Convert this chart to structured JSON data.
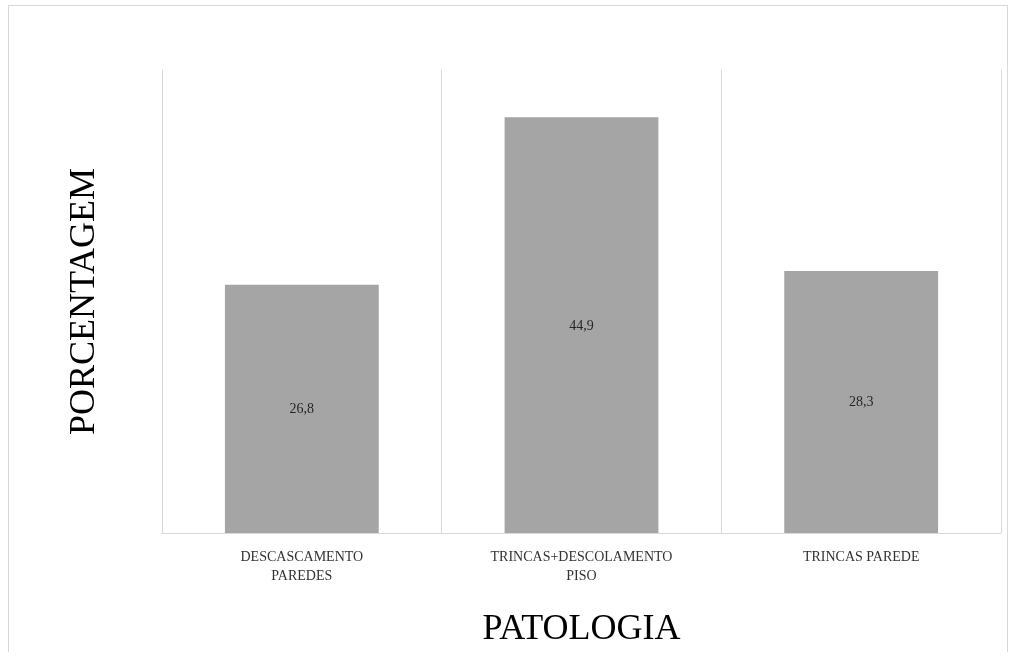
{
  "chart_data": {
    "type": "bar",
    "xlabel": "PATOLOGIA",
    "ylabel": "PORCENTAGEM",
    "categories": [
      "DESCASCAMENTO PAREDES",
      "TRINCAS+DESCOLAMENTO PISO",
      "TRINCAS PAREDE"
    ],
    "values": [
      26.8,
      44.9,
      28.3
    ],
    "color": "#a5a5a5",
    "value_labels": [
      "26,8",
      "44,9",
      "28,3"
    ],
    "grid": "x",
    "tick_labels": "x"
  }
}
